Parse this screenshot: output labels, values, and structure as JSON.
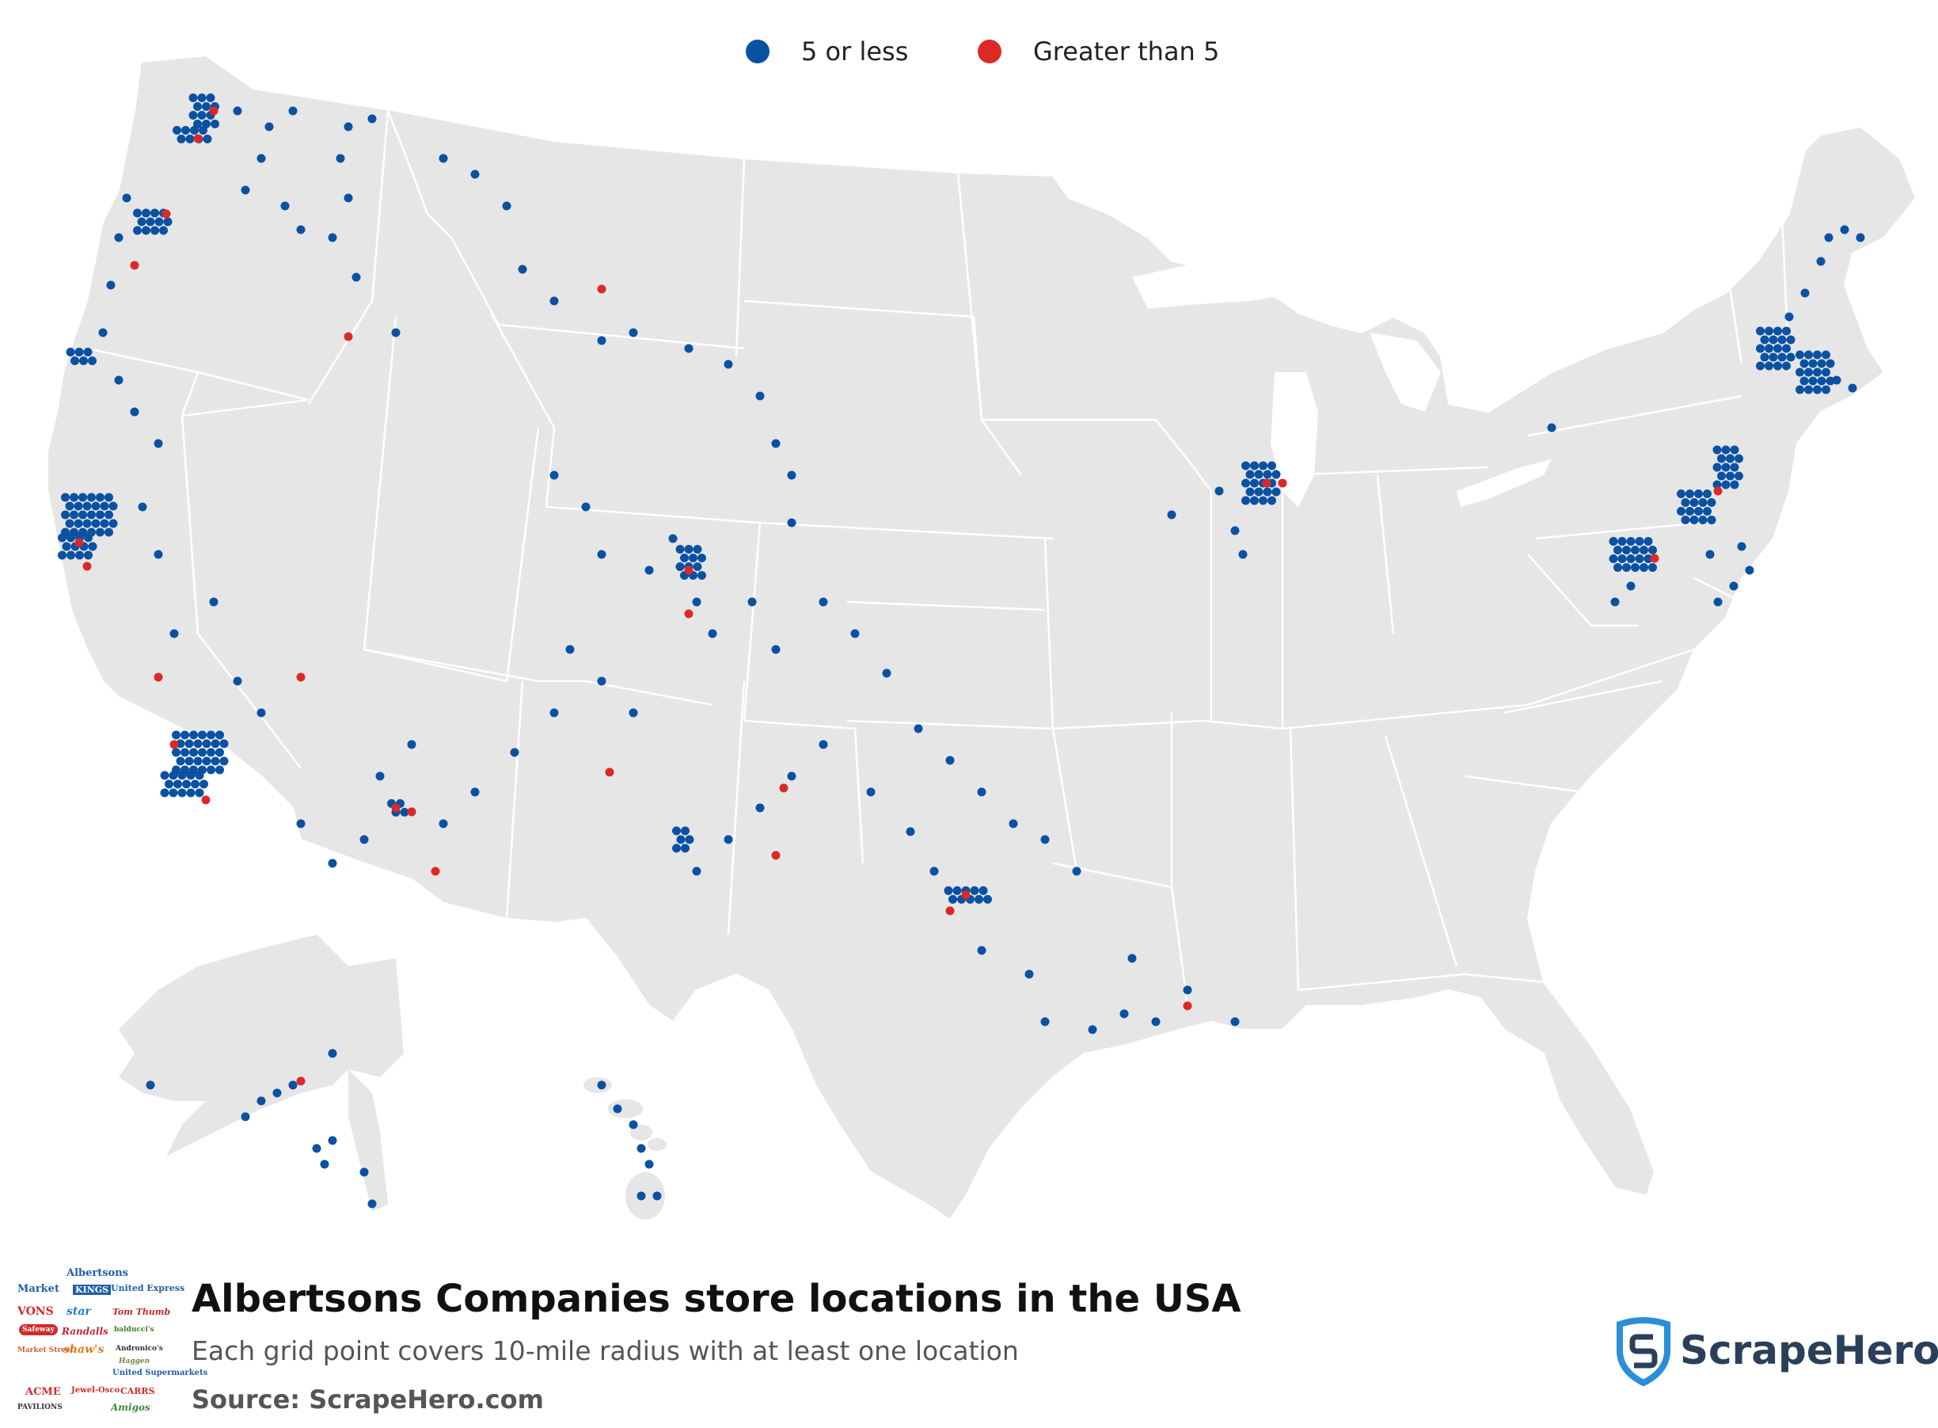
{
  "legend": [
    {
      "label": "5 or less",
      "color": "#0a51a2"
    },
    {
      "label": "Greater than 5",
      "color": "#db2a25"
    }
  ],
  "title": "Albertsons Companies store locations in the USA",
  "subtitle": "Each grid point covers 10-mile radius with at least one location",
  "source": "Source: ScrapeHero.com",
  "brand": {
    "name": "ScrapeHero",
    "icon": "scrapehero-shield-icon",
    "accent": "#2a8fd8"
  },
  "store_logos": [
    "Albertsons",
    "Market",
    "KINGS",
    "United Express",
    "VONS",
    "star",
    "Tom Thumb",
    "Randalls",
    "shaw's",
    "balducci's",
    "Market Street",
    "Andronico's",
    "Haggen",
    "United Supermarkets",
    "ACME",
    "Jewel-Osco",
    "CARRS",
    "PAVILIONS",
    "Amigos",
    "Safeway"
  ],
  "colors": {
    "land": "#e6e6e6",
    "border": "#ffffff",
    "water": "#ffffff",
    "dot_low": "#0a51a2",
    "dot_high": "#db2a25"
  }
}
